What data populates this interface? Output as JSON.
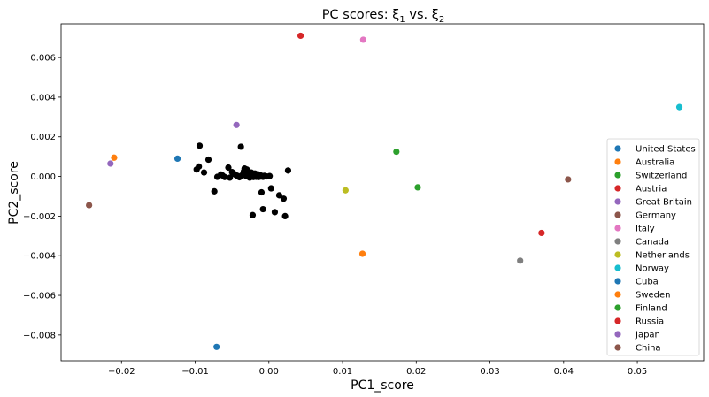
{
  "chart_data": {
    "type": "scatter",
    "title": "PC scores: ξ",
    "title_sub_1": "1",
    "title_mid": " vs. ξ",
    "title_sub_2": "2",
    "xlabel": "PC1_score",
    "ylabel": "PC2_score",
    "xlim": [
      -0.0282,
      0.059
    ],
    "ylim": [
      -0.0093,
      0.0077
    ],
    "xticks": [
      -0.02,
      -0.01,
      0.0,
      0.01,
      0.02,
      0.03,
      0.04,
      0.05
    ],
    "xtick_labels": [
      "−0.02",
      "−0.01",
      "0.00",
      "0.01",
      "0.02",
      "0.03",
      "0.04",
      "0.05"
    ],
    "yticks": [
      -0.008,
      -0.006,
      -0.004,
      -0.002,
      0.0,
      0.002,
      0.004,
      0.006
    ],
    "ytick_labels": [
      "−0.008",
      "−0.006",
      "−0.004",
      "−0.002",
      "0.000",
      "0.002",
      "0.004",
      "0.006"
    ],
    "grid": false,
    "legend_position": "lower-right",
    "background_series": {
      "color": "#000000",
      "points": [
        [
          -0.0098,
          0.00035
        ],
        [
          -0.0095,
          0.0005
        ],
        [
          -0.0094,
          0.00155
        ],
        [
          -0.0088,
          0.0002
        ],
        [
          -0.0082,
          0.00085
        ],
        [
          -0.0074,
          -0.00075
        ],
        [
          -0.007,
          -2e-05
        ],
        [
          -0.0065,
          0.0001
        ],
        [
          -0.0063,
          5e-05
        ],
        [
          -0.006,
          -3e-05
        ],
        [
          -0.0055,
          0.00045
        ],
        [
          -0.0053,
          -6e-05
        ],
        [
          -0.005,
          0.00022
        ],
        [
          -0.0048,
          0.00015
        ],
        [
          -0.0046,
          0.0001
        ],
        [
          -0.0044,
          5e-05
        ],
        [
          -0.0042,
          2e-05
        ],
        [
          -0.004,
          -4e-05
        ],
        [
          -0.0038,
          0.0015
        ],
        [
          -0.0036,
          6e-05
        ],
        [
          -0.0035,
          0.00012
        ],
        [
          -0.0034,
          0.00025
        ],
        [
          -0.0033,
          0.0004
        ],
        [
          -0.0032,
          8e-05
        ],
        [
          -0.0031,
          3e-05
        ],
        [
          -0.003,
          0.00035
        ],
        [
          -0.0029,
          0.00018
        ],
        [
          -0.0028,
          4e-05
        ],
        [
          -0.0027,
          -2e-05
        ],
        [
          -0.0026,
          -6e-05
        ],
        [
          -0.0025,
          0.00012
        ],
        [
          -0.0024,
          0.0002
        ],
        [
          -0.0023,
          6e-05
        ],
        [
          -0.0022,
          2e-05
        ],
        [
          -0.0021,
          -3e-05
        ],
        [
          -0.002,
          9e-05
        ],
        [
          -0.0019,
          0.00015
        ],
        [
          -0.0018,
          3e-05
        ],
        [
          -0.0017,
          -2e-05
        ],
        [
          -0.0016,
          7e-05
        ],
        [
          -0.0015,
          0.00011
        ],
        [
          -0.0014,
          -3e-05
        ],
        [
          -0.0013,
          4e-05
        ],
        [
          -0.0012,
          -1e-05
        ],
        [
          -0.0011,
          5e-05
        ],
        [
          -0.001,
          -0.0008
        ],
        [
          -0.0009,
          2e-05
        ],
        [
          -0.0008,
          -2e-05
        ],
        [
          -0.0006,
          3e-05
        ],
        [
          -0.0005,
          1e-05
        ],
        [
          -0.0003,
          0.0
        ],
        [
          0.0001,
          2e-05
        ],
        [
          0.0003,
          -0.0006
        ],
        [
          -0.0022,
          -0.00195
        ],
        [
          -0.0008,
          -0.00165
        ],
        [
          0.0008,
          -0.0018
        ],
        [
          0.0014,
          -0.00095
        ],
        [
          0.002,
          -0.00112
        ],
        [
          0.0022,
          -0.002
        ],
        [
          0.0026,
          0.0003
        ]
      ]
    },
    "series": [
      {
        "name": "United States",
        "color": "#1f77b4",
        "x": -0.0124,
        "y": 0.0009
      },
      {
        "name": "Australia",
        "color": "#ff7f0e",
        "x": 0.0127,
        "y": -0.0039
      },
      {
        "name": "Switzerland",
        "color": "#2ca02c",
        "x": 0.0173,
        "y": 0.00125
      },
      {
        "name": "Austria",
        "color": "#d62728",
        "x": 0.0043,
        "y": 0.0071
      },
      {
        "name": "Great Britain",
        "color": "#9467bd",
        "x": -0.0215,
        "y": 0.00065
      },
      {
        "name": "Germany",
        "color": "#8c564b",
        "x": 0.0406,
        "y": -0.00015
      },
      {
        "name": "Italy",
        "color": "#e377c2",
        "x": 0.0128,
        "y": 0.0069
      },
      {
        "name": "Canada",
        "color": "#7f7f7f",
        "x": 0.0341,
        "y": -0.00425
      },
      {
        "name": "Netherlands",
        "color": "#bcbd22",
        "x": 0.0104,
        "y": -0.0007
      },
      {
        "name": "Norway",
        "color": "#17becf",
        "x": 0.0557,
        "y": 0.0035
      },
      {
        "name": "Cuba",
        "color": "#1f77b4",
        "x": -0.0071,
        "y": -0.0086
      },
      {
        "name": "Sweden",
        "color": "#ff7f0e",
        "x": -0.021,
        "y": 0.00095
      },
      {
        "name": "Finland",
        "color": "#2ca02c",
        "x": 0.0202,
        "y": -0.00055
      },
      {
        "name": "Russia",
        "color": "#d62728",
        "x": 0.037,
        "y": -0.00285
      },
      {
        "name": "Japan",
        "color": "#9467bd",
        "x": -0.0044,
        "y": 0.0026
      },
      {
        "name": "China",
        "color": "#8c564b",
        "x": -0.0244,
        "y": -0.00145
      }
    ]
  }
}
